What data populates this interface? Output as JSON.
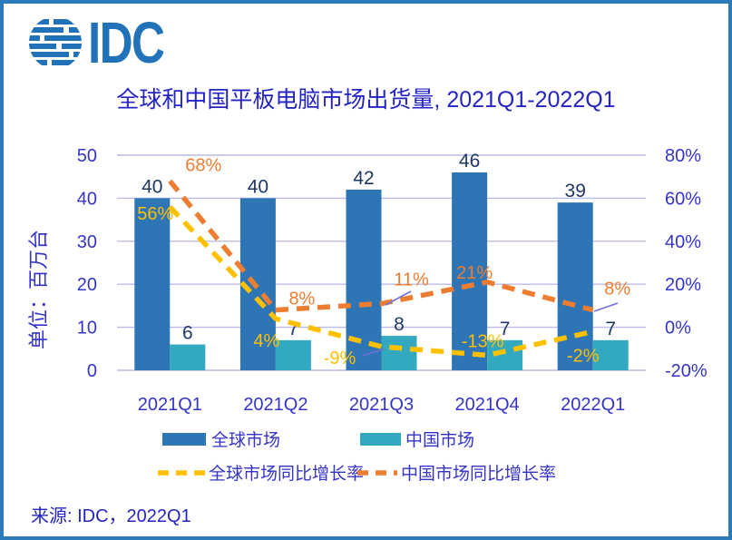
{
  "frame": {
    "border_color": "#2B7BBA",
    "background": "#FFFFFF"
  },
  "logo": {
    "text": "IDC",
    "icon": "globe-stripes-icon",
    "color": "#2272B9"
  },
  "title": {
    "text": "全球和中国平板电脑市场出货量, 2021Q1-2022Q1",
    "color": "#2424C4"
  },
  "source": {
    "text": "来源: IDC，2022Q1",
    "color": "#2424C4"
  },
  "chart_data": {
    "type": "combo-bar-line",
    "categories": [
      "2021Q1",
      "2021Q2",
      "2021Q3",
      "2021Q4",
      "2022Q1"
    ],
    "bar_series": [
      {
        "name": "全球市场",
        "color": "#2E75B6",
        "axis": "left",
        "values": [
          40,
          40,
          42,
          46,
          39
        ],
        "labels": [
          "40",
          "40",
          "42",
          "46",
          "39"
        ]
      },
      {
        "name": "中国市场",
        "color": "#33A9C0",
        "axis": "left",
        "values": [
          6,
          7,
          8,
          7,
          7
        ],
        "labels": [
          "6",
          "7",
          "8",
          "7",
          "7"
        ]
      }
    ],
    "line_series": [
      {
        "name": "全球市场同比增长率",
        "color": "#FFC000",
        "style": "dashed",
        "axis": "right",
        "values": [
          56,
          4,
          -9,
          -13,
          -2
        ],
        "labels": [
          "56%",
          "4%",
          "-9%",
          "-13%",
          "-2%"
        ]
      },
      {
        "name": "中国市场同比增长率",
        "color": "#ED7D31",
        "style": "dashed",
        "axis": "right",
        "values": [
          68,
          8,
          11,
          21,
          8
        ],
        "labels": [
          "68%",
          "8%",
          "11%",
          "21%",
          "8%"
        ]
      }
    ],
    "left_axis": {
      "title": "单位：百万台",
      "min": 0,
      "max": 50,
      "step": 10,
      "ticks": [
        "0",
        "10",
        "20",
        "30",
        "40",
        "50"
      ]
    },
    "right_axis": {
      "min": -20,
      "max": 80,
      "step": 20,
      "ticks": [
        "-20%",
        "0%",
        "20%",
        "40%",
        "60%",
        "80%"
      ]
    },
    "grid": true,
    "legend_position": "bottom",
    "label_color": "#1F3864",
    "axis_color": "#3434C8",
    "grid_color": "#B9BCE9",
    "leader_color": "#7070DC"
  }
}
